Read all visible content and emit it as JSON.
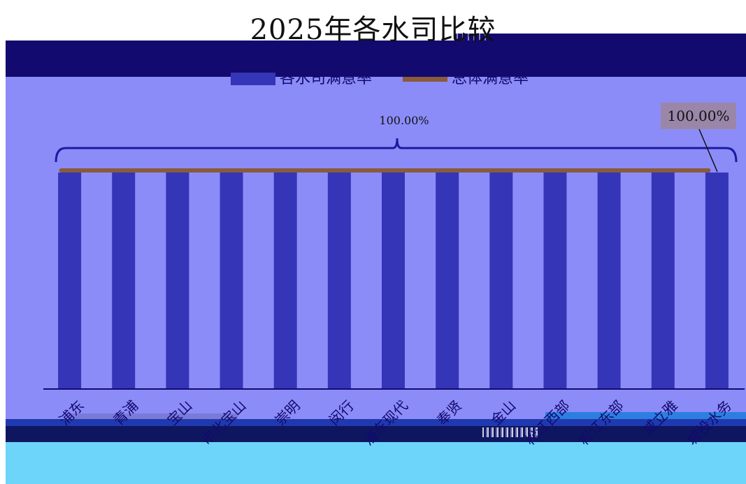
{
  "chart_data": {
    "type": "bar",
    "title": "2025年各水司比较",
    "categories": [
      "浦东",
      "青浦",
      "宝山",
      "市北宝山",
      "崇明",
      "闵行",
      "浦东现代",
      "奉贤",
      "金山",
      "松江西部",
      "松江东部",
      "威立雅",
      "城投水务"
    ],
    "series": [
      {
        "name": "各水司满意率",
        "type": "bar",
        "values": [
          100,
          100,
          100,
          100,
          100,
          100,
          100,
          100,
          100,
          100,
          100,
          100,
          100
        ]
      },
      {
        "name": "总体满意率",
        "type": "line",
        "values": [
          100,
          100,
          100,
          100,
          100,
          100,
          100,
          100,
          100,
          100,
          100,
          100,
          100
        ]
      }
    ],
    "data_label_bar": "100.00%",
    "data_label_line": "100.00%",
    "ylim": [
      0,
      100
    ],
    "xlabel": "",
    "ylabel": "",
    "legend_position": "top",
    "grid": false,
    "colors": {
      "bar": "#3535b8",
      "line": "#8a5a3a",
      "axis": "#120a6e",
      "brace": "#1a1aa0"
    }
  }
}
